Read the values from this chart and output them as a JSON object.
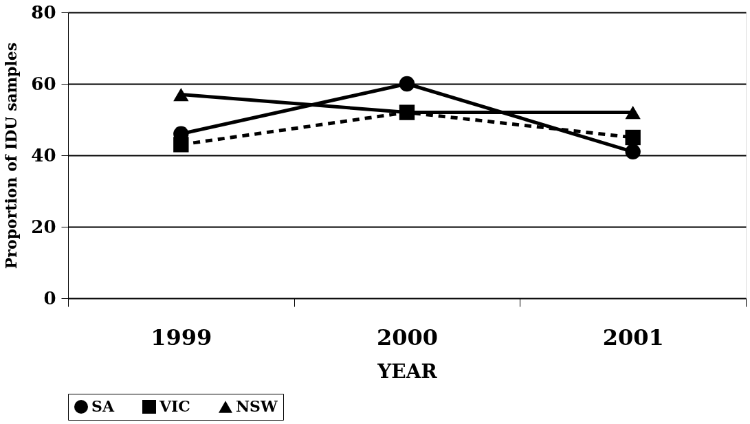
{
  "chart_data": {
    "type": "line",
    "xlabel": "YEAR",
    "ylabel": "Proportion of IDU samples",
    "categories": [
      "1999",
      "2000",
      "2001"
    ],
    "series": [
      {
        "name": "SA",
        "color": "#000000",
        "values": [
          46,
          60,
          41
        ],
        "marker": "circle",
        "line_style": "solid"
      },
      {
        "name": "VIC",
        "color": "#000000",
        "values": [
          43,
          52,
          45
        ],
        "marker": "square",
        "line_style": "dashed"
      },
      {
        "name": "NSW",
        "color": "#000000",
        "values": [
          57,
          52,
          52
        ],
        "marker": "triangle",
        "line_style": "solid"
      }
    ],
    "ylim": [
      0,
      80
    ],
    "yticks": [
      0,
      20,
      40,
      60,
      80
    ],
    "grid": "y",
    "legend": "bottom"
  }
}
